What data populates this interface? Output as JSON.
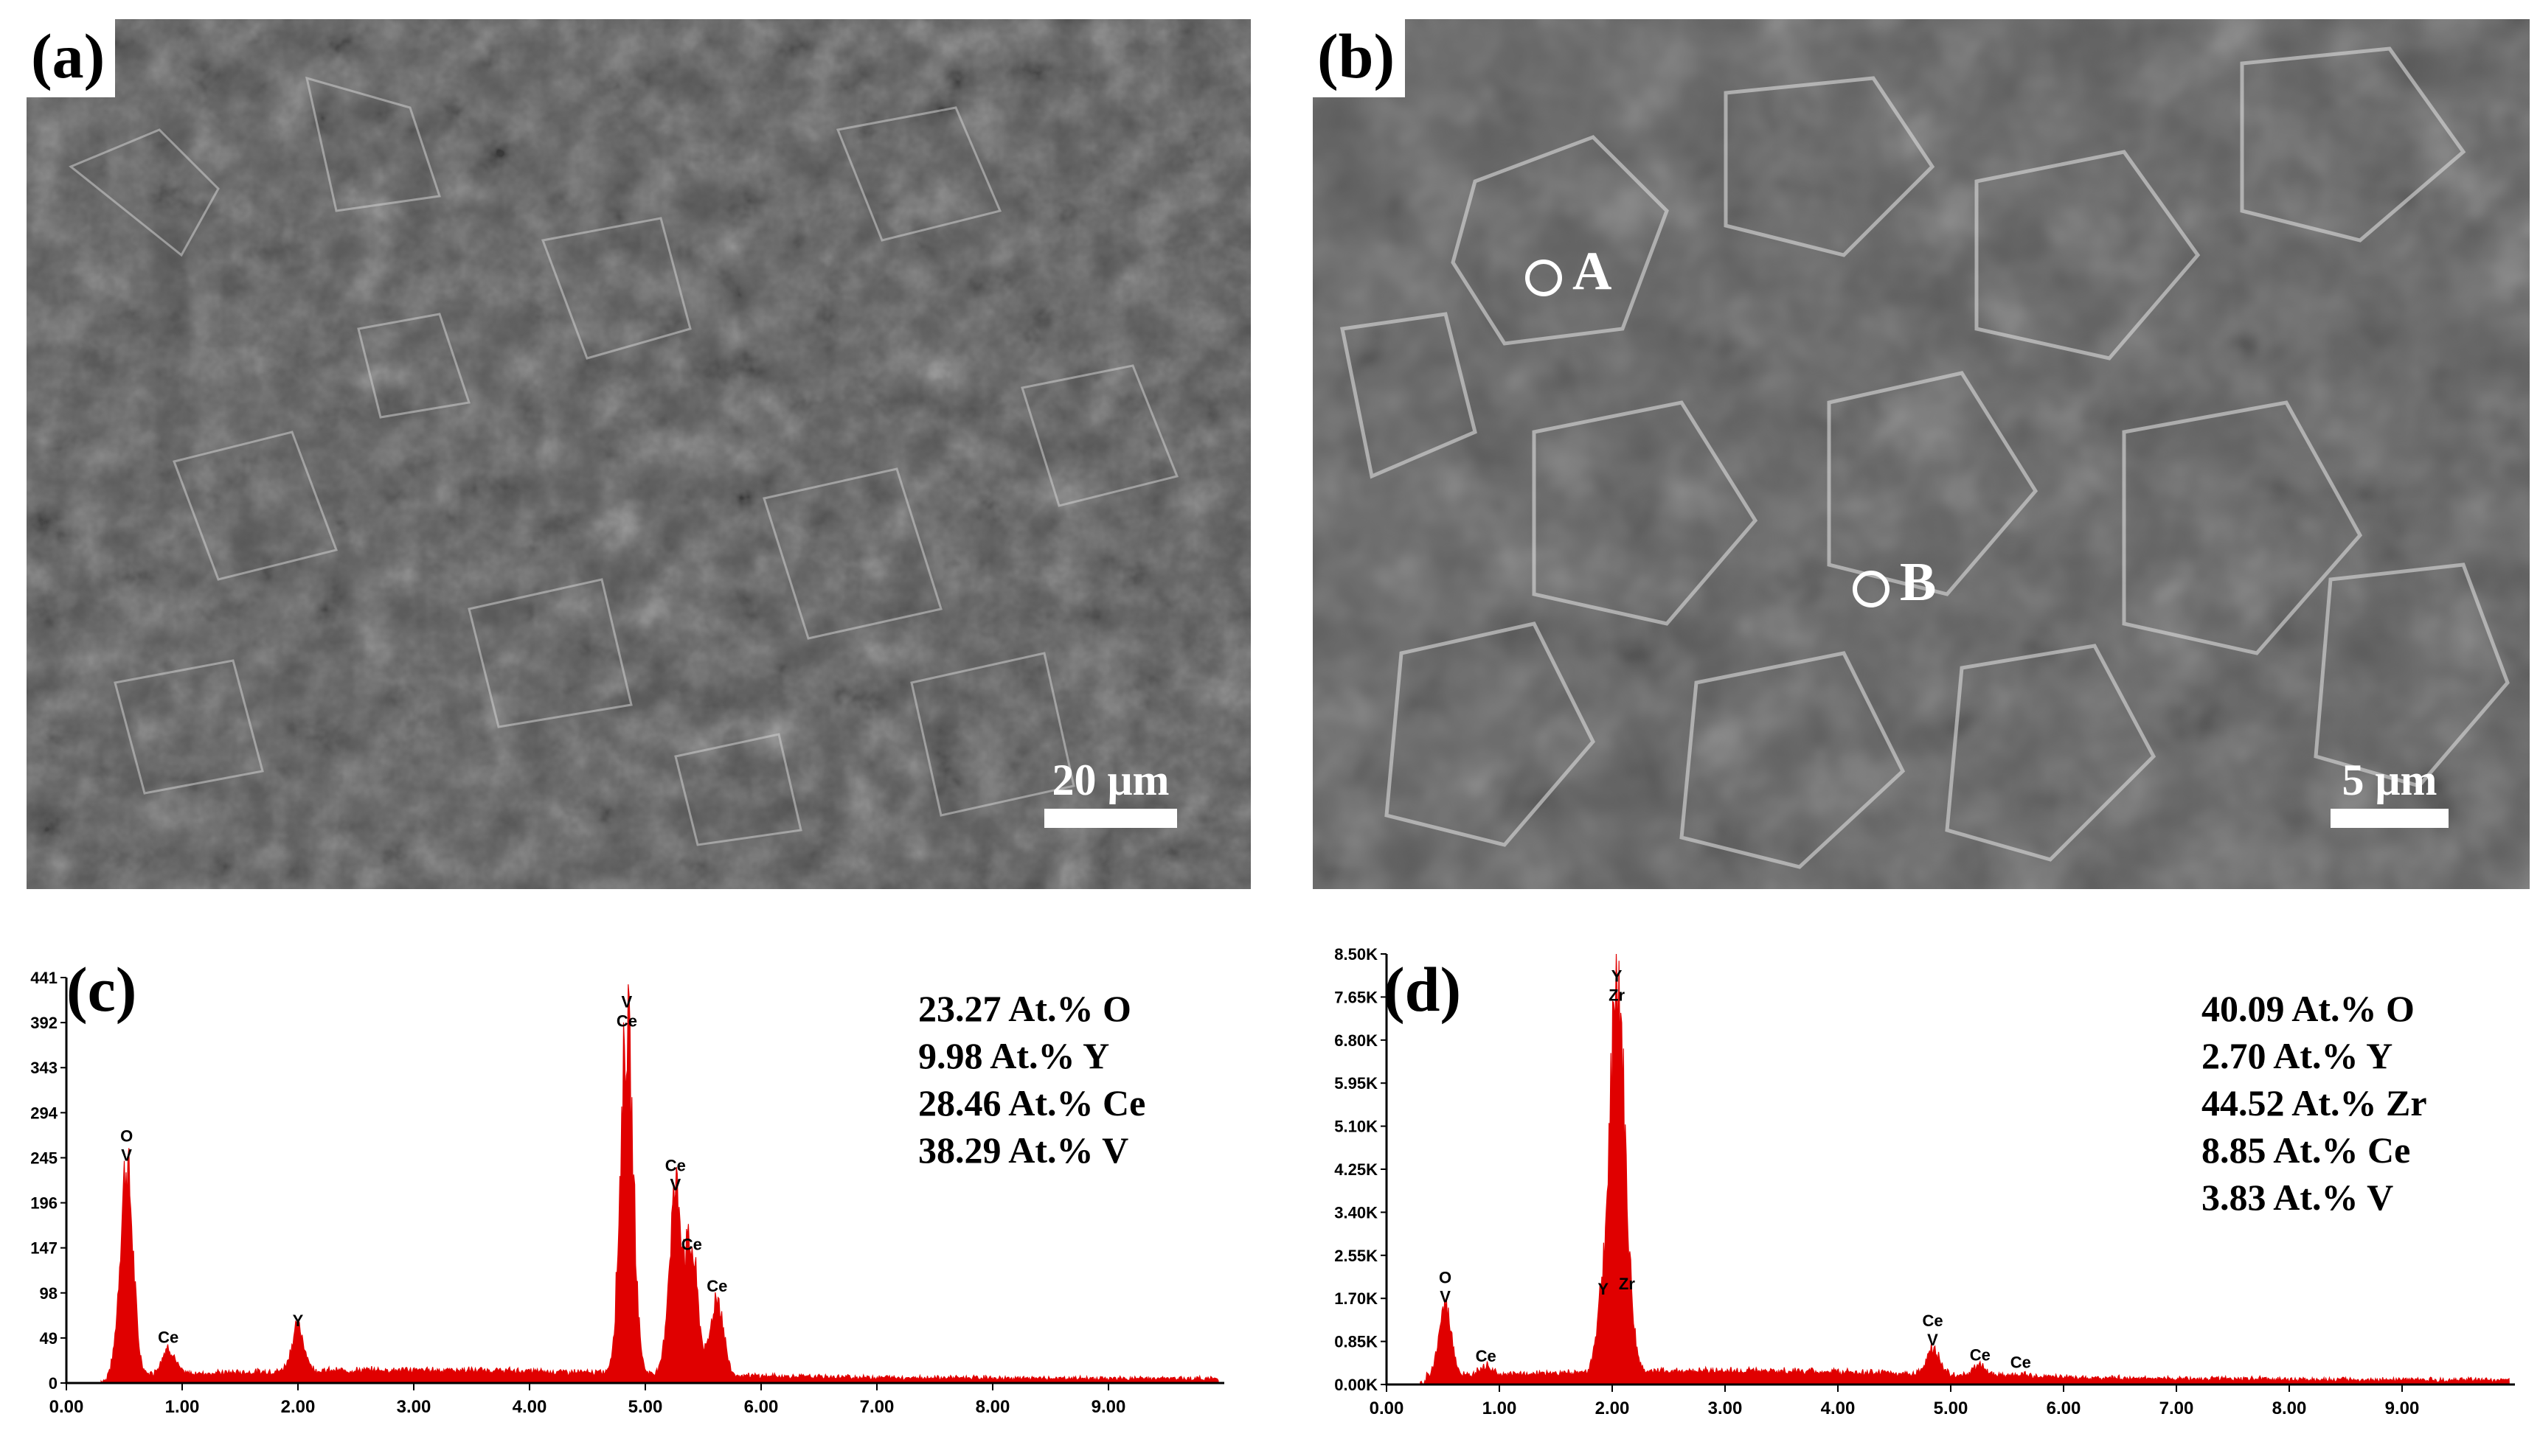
{
  "panels": {
    "a": {
      "label": "(a)",
      "scalebar": "20 μm"
    },
    "b": {
      "label": "(b)",
      "scalebar": "5 μm",
      "point_a": "A",
      "point_b": "B"
    },
    "c": {
      "label": "(c)"
    },
    "d": {
      "label": "(d)"
    }
  },
  "chart_data": [
    {
      "panel": "c",
      "type": "area",
      "color": "#e00000",
      "x_ticks": [
        "0.00",
        "1.00",
        "2.00",
        "3.00",
        "4.00",
        "5.00",
        "6.00",
        "7.00",
        "8.00",
        "9.00"
      ],
      "y_ticks": [
        "0",
        "49",
        "98",
        "147",
        "196",
        "245",
        "294",
        "343",
        "392",
        "441"
      ],
      "xlim": [
        0,
        10
      ],
      "ylim": [
        0,
        441
      ],
      "peaks": [
        {
          "x": 0.52,
          "y": 232,
          "labels": [
            "O",
            "V"
          ]
        },
        {
          "x": 0.88,
          "y": 34,
          "labels": [
            "Ce"
          ]
        },
        {
          "x": 2.0,
          "y": 52,
          "labels": [
            "Y"
          ]
        },
        {
          "x": 4.84,
          "y": 378,
          "labels": [
            "V",
            "Ce"
          ]
        },
        {
          "x": 5.26,
          "y": 200,
          "labels": [
            "Ce",
            "V"
          ]
        },
        {
          "x": 5.4,
          "y": 135,
          "labels": [
            "Ce"
          ]
        },
        {
          "x": 5.62,
          "y": 90,
          "labels": [
            "Ce"
          ]
        }
      ],
      "composition": [
        "23.27 At.% O",
        "9.98 At.% Y",
        "28.46 At.% Ce",
        "38.29 At.% V"
      ]
    },
    {
      "panel": "d",
      "type": "area",
      "color": "#e00000",
      "x_ticks": [
        "0.00",
        "1.00",
        "2.00",
        "3.00",
        "4.00",
        "5.00",
        "6.00",
        "7.00",
        "8.00",
        "9.00"
      ],
      "y_ticks": [
        "0.00K",
        "0.85K",
        "1.70K",
        "2.55K",
        "3.40K",
        "4.25K",
        "5.10K",
        "5.95K",
        "6.80K",
        "7.65K",
        "8.50K"
      ],
      "xlim": [
        0,
        10
      ],
      "ylim": [
        0,
        8.5
      ],
      "peaks": [
        {
          "x": 0.52,
          "y": 1.45,
          "labels": [
            "O",
            "V"
          ]
        },
        {
          "x": 0.88,
          "y": 0.28,
          "labels": [
            "Ce"
          ]
        },
        {
          "x": 1.92,
          "y": 1.6,
          "labels": [
            "Y"
          ]
        },
        {
          "x": 2.04,
          "y": 7.4,
          "labels": [
            "Y",
            "Zr"
          ]
        },
        {
          "x": 2.13,
          "y": 1.7,
          "labels": [
            "Zr"
          ]
        },
        {
          "x": 4.84,
          "y": 0.6,
          "labels": [
            "Ce",
            "V"
          ]
        },
        {
          "x": 5.26,
          "y": 0.3,
          "labels": [
            "Ce"
          ]
        },
        {
          "x": 5.62,
          "y": 0.15,
          "labels": [
            "Ce"
          ]
        }
      ],
      "composition": [
        "40.09 At.% O",
        "2.70 At.% Y",
        "44.52 At.% Zr",
        "8.85 At.% Ce",
        "3.83 At.% V"
      ]
    }
  ]
}
